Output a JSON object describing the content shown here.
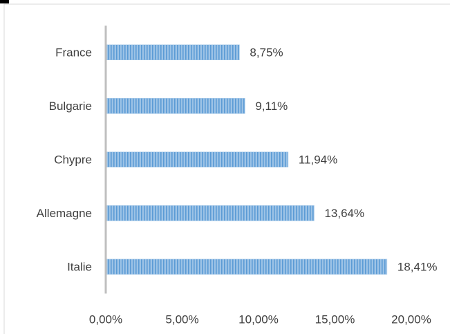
{
  "chart_data": {
    "type": "bar",
    "orientation": "horizontal",
    "categories": [
      "France",
      "Bulgarie",
      "Chypre",
      "Allemagne",
      "Italie"
    ],
    "values": [
      8.75,
      9.11,
      11.94,
      13.64,
      18.41
    ],
    "data_labels": [
      "8,75%",
      "9,11%",
      "11,94%",
      "13,64%",
      "18,41%"
    ],
    "xlim": [
      0,
      20
    ],
    "xticks": [
      0,
      5,
      10,
      15,
      20
    ],
    "xtick_labels": [
      "0,00%",
      "5,00%",
      "10,00%",
      "15,00%",
      "20,00%"
    ],
    "grid": false,
    "legend": "none",
    "colors": {
      "bar_fill": "#9dc3e6",
      "bar_stripe": "#5b9bd5",
      "axis": "#bfbfbf",
      "text": "#404040"
    }
  }
}
